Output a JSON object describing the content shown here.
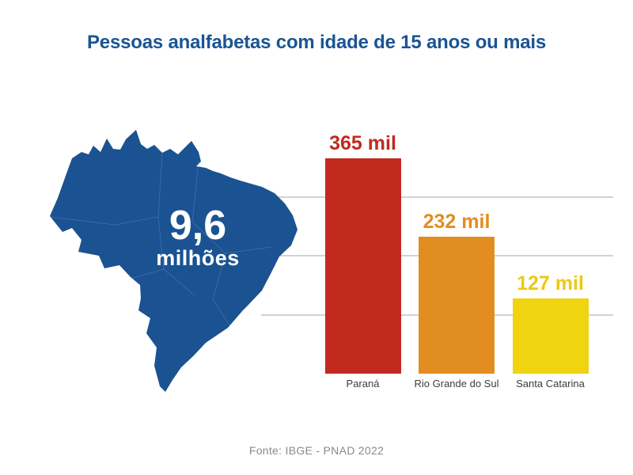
{
  "title": "Pessoas analfabetas com idade de 15 anos ou mais",
  "title_color": "#1a5493",
  "map": {
    "country": "Brasil",
    "fill_color": "#1b5292",
    "value": "9,6",
    "unit": "milhões",
    "text_color": "#ffffff"
  },
  "footer": "Fonte: IBGE - PNAD 2022",
  "chart_data": {
    "type": "bar",
    "title": "Pessoas analfabetas com idade de 15 anos ou mais",
    "categories": [
      "Paraná",
      "Rio Grande do Sul",
      "Santa Catarina"
    ],
    "values": [
      365,
      232,
      127
    ],
    "value_labels": [
      "365 mil",
      "232 mil",
      "127 mil"
    ],
    "bar_colors": [
      "#c22a1e",
      "#e28d20",
      "#f0d40f"
    ],
    "label_colors": [
      "#c22a1e",
      "#e28d20",
      "#eec90e"
    ],
    "unit": "mil",
    "xlabel": "",
    "ylabel": "",
    "ylim": [
      0,
      400
    ],
    "gridlines": [
      100,
      200,
      300
    ],
    "grid_color": "#d2d2d2",
    "legend": "none",
    "annotation_total": "9,6 milhões",
    "source": "Fonte: IBGE - PNAD 2022"
  }
}
